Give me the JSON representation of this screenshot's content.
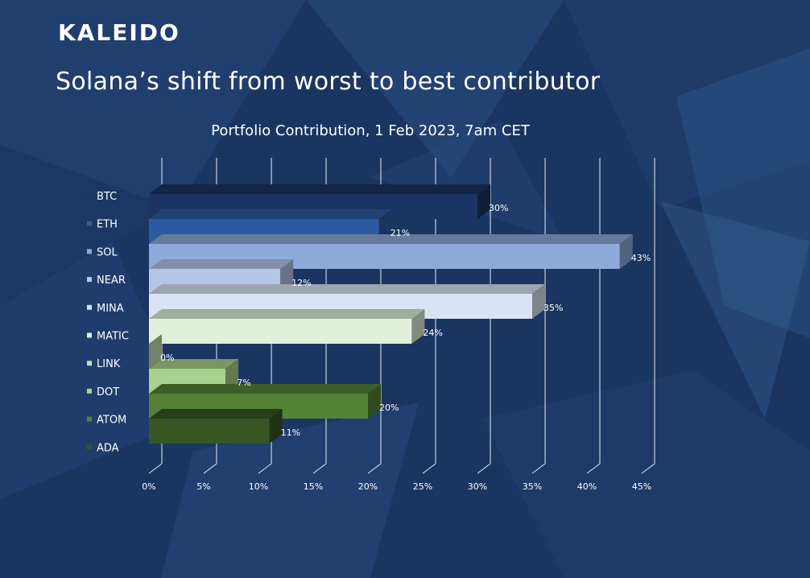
{
  "brand": "KALEIDO",
  "headline": "Solana’s shift from worst to best contributor",
  "colors": {
    "background": "#1b3561",
    "text": "#ffffff",
    "gridline": "#e8ecf2"
  },
  "chart_data": {
    "type": "bar",
    "orientation": "horizontal",
    "style": "3d",
    "title": "Portfolio Contribution, 1 Feb 2023, 7am CET",
    "xlabel": "",
    "ylabel": "",
    "xlim": [
      0,
      45
    ],
    "x_ticks": [
      0,
      5,
      10,
      15,
      20,
      25,
      30,
      35,
      40,
      45
    ],
    "x_tick_labels": [
      "0%",
      "5%",
      "10%",
      "15%",
      "20%",
      "25%",
      "30%",
      "35%",
      "40%",
      "45%"
    ],
    "grid": true,
    "legend_position": "left",
    "categories": [
      "BTC",
      "ETH",
      "SOL",
      "NEAR",
      "MINA",
      "MATIC",
      "LINK",
      "DOT",
      "ATOM",
      "ADA"
    ],
    "values": [
      30,
      21,
      43,
      12,
      35,
      24,
      0,
      7,
      20,
      11
    ],
    "value_labels": [
      "30%",
      "21%",
      "43%",
      "12%",
      "35%",
      "24%",
      "0%",
      "7%",
      "20%",
      "11%"
    ],
    "bar_colors": [
      "#1c3463",
      "#2c5aa0",
      "#8eaadb",
      "#b4c7e7",
      "#dae3f3",
      "#e2f0d9",
      "#c5e0b4",
      "#a9d18e",
      "#548235",
      "#375623"
    ]
  }
}
